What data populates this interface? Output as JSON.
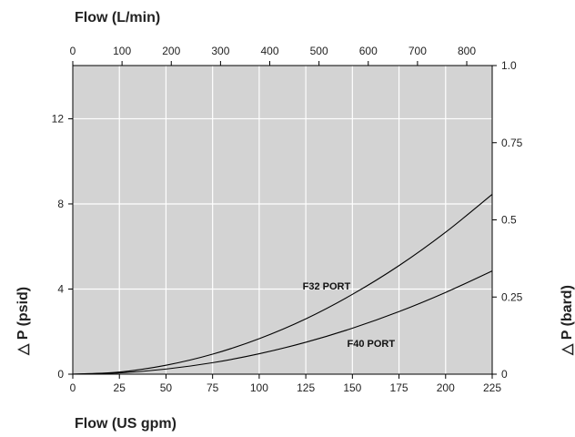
{
  "chart_data": {
    "type": "line",
    "x_bottom": {
      "label": "Flow (US gpm)",
      "range": [
        0,
        225
      ],
      "ticks": [
        0,
        25,
        50,
        75,
        100,
        125,
        150,
        175,
        200,
        225
      ]
    },
    "x_top": {
      "label": "Flow (L/min)",
      "range": [
        0,
        851.7
      ],
      "ticks": [
        0,
        100,
        200,
        300,
        400,
        500,
        600,
        700,
        800
      ]
    },
    "y_left": {
      "label": "△ P (psid)",
      "range": [
        0,
        14.5
      ],
      "ticks": [
        0,
        4,
        8,
        12
      ]
    },
    "y_right": {
      "label": "△ P (bard)",
      "range": [
        0,
        1.0
      ],
      "ticks": [
        0,
        0.25,
        0.5,
        0.75,
        1.0
      ],
      "tick_labels": [
        "0",
        "0.25",
        "0.5",
        "0.75",
        "1.0"
      ]
    },
    "grid": true,
    "plot_background": "#d3d3d3",
    "grid_color": "#ffffff",
    "line_color": "#000000",
    "series": [
      {
        "name": "F32 PORT",
        "x": [
          0,
          25,
          50,
          75,
          100,
          125,
          150,
          175,
          200,
          225
        ],
        "y": [
          0,
          0.1,
          0.42,
          0.94,
          1.67,
          2.6,
          3.75,
          5.1,
          6.67,
          8.45
        ]
      },
      {
        "name": "F40 PORT",
        "x": [
          0,
          25,
          50,
          75,
          100,
          125,
          150,
          175,
          200,
          225
        ],
        "y": [
          0,
          0.06,
          0.24,
          0.54,
          0.96,
          1.5,
          2.16,
          2.94,
          3.84,
          4.85
        ]
      }
    ]
  }
}
